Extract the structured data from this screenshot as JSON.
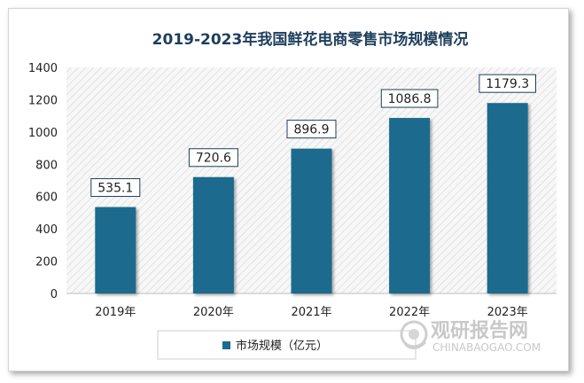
{
  "chart_data": {
    "type": "bar",
    "title": "2019-2023年我国鲜花电商零售市场规模情况",
    "categories": [
      "2019年",
      "2020年",
      "2021年",
      "2022年",
      "2023年"
    ],
    "series": [
      {
        "name": "市场规模（亿元）",
        "values": [
          535.1,
          720.6,
          896.9,
          1086.8,
          1179.3
        ]
      }
    ],
    "data_labels": [
      "535.1",
      "720.6",
      "896.9",
      "1086.8",
      "1179.3"
    ],
    "ylim": [
      0,
      1400
    ],
    "yticks": [
      0,
      200,
      400,
      600,
      800,
      1000,
      1200,
      1400
    ],
    "grid": false,
    "legend_position": "bottom",
    "bar_color": "#1c6a8d",
    "plot_background": "hatched-light-gray"
  },
  "watermark": {
    "cn": "观研报告网",
    "en": "CHINABAOGAO.COM"
  }
}
